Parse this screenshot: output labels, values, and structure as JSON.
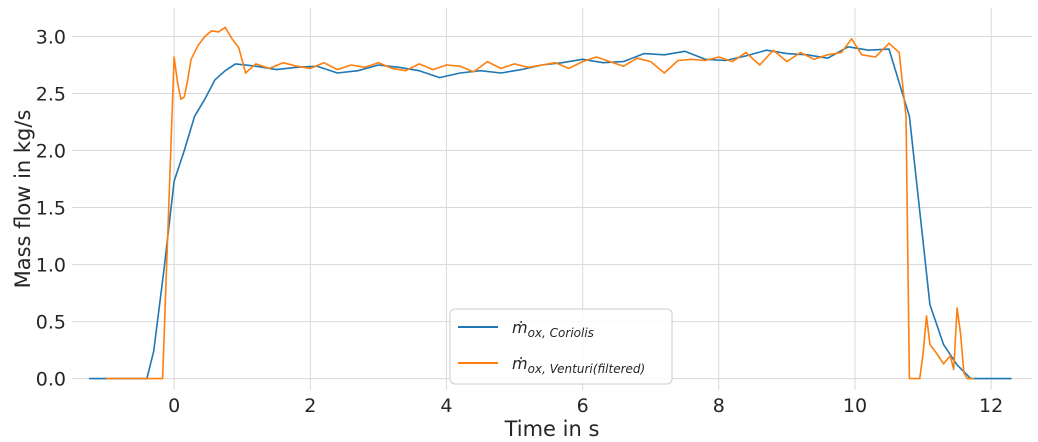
{
  "chart_data": {
    "type": "line",
    "title": "",
    "xlabel": "Time in s",
    "ylabel": "Mass flow in kg/s",
    "xlim": [
      -1.5,
      12.6
    ],
    "ylim": [
      -0.1,
      3.25
    ],
    "xticks": [
      0,
      2,
      4,
      6,
      8,
      10,
      12
    ],
    "xtick_labels": [
      "0",
      "2",
      "4",
      "6",
      "8",
      "10",
      "12"
    ],
    "yticks": [
      0.0,
      0.5,
      1.0,
      1.5,
      2.0,
      2.5,
      3.0
    ],
    "ytick_labels": [
      "0.0",
      "0.5",
      "1.0",
      "1.5",
      "2.0",
      "2.5",
      "3.0"
    ],
    "grid": true,
    "legend_position": "bottom-center",
    "series": [
      {
        "name_main": "ṁ",
        "name_sub": "ox, Coriolis",
        "color": "#1f77b4",
        "x": [
          -1.25,
          -0.4,
          -0.3,
          -0.15,
          0,
          0.15,
          0.3,
          0.45,
          0.6,
          0.75,
          0.9,
          1.2,
          1.5,
          1.8,
          2.1,
          2.4,
          2.7,
          3.0,
          3.3,
          3.6,
          3.9,
          4.2,
          4.5,
          4.8,
          5.1,
          5.4,
          5.7,
          6.0,
          6.3,
          6.6,
          6.9,
          7.2,
          7.5,
          7.8,
          8.1,
          8.4,
          8.7,
          9.0,
          9.3,
          9.6,
          9.9,
          10.2,
          10.5,
          10.8,
          11.0,
          11.1,
          11.3,
          11.5,
          11.7,
          12.3
        ],
        "y": [
          0.0,
          0.0,
          0.24,
          0.95,
          1.73,
          2.0,
          2.3,
          2.45,
          2.62,
          2.7,
          2.76,
          2.74,
          2.71,
          2.73,
          2.74,
          2.68,
          2.7,
          2.75,
          2.73,
          2.7,
          2.64,
          2.68,
          2.7,
          2.68,
          2.71,
          2.75,
          2.77,
          2.8,
          2.77,
          2.78,
          2.85,
          2.84,
          2.87,
          2.8,
          2.79,
          2.83,
          2.88,
          2.85,
          2.84,
          2.81,
          2.91,
          2.88,
          2.89,
          2.3,
          1.2,
          0.65,
          0.3,
          0.12,
          0.0,
          0.0
        ]
      },
      {
        "name_main": "ṁ",
        "name_sub": "ox, Venturi(filtered)",
        "color": "#ff7f0e",
        "x": [
          -1.0,
          -0.2,
          -0.17,
          0.0,
          0.05,
          0.1,
          0.15,
          0.2,
          0.25,
          0.35,
          0.45,
          0.55,
          0.65,
          0.75,
          0.85,
          0.95,
          1.05,
          1.2,
          1.4,
          1.6,
          1.8,
          2.0,
          2.2,
          2.4,
          2.6,
          2.8,
          3.0,
          3.2,
          3.4,
          3.6,
          3.8,
          4.0,
          4.2,
          4.4,
          4.6,
          4.8,
          5.0,
          5.2,
          5.4,
          5.6,
          5.8,
          6.0,
          6.2,
          6.4,
          6.6,
          6.8,
          7.0,
          7.2,
          7.4,
          7.6,
          7.8,
          8.0,
          8.2,
          8.4,
          8.6,
          8.8,
          9.0,
          9.2,
          9.4,
          9.6,
          9.8,
          9.95,
          10.1,
          10.3,
          10.5,
          10.65,
          10.75,
          10.8,
          10.9,
          10.95,
          11.0,
          11.05,
          11.1,
          11.2,
          11.3,
          11.4,
          11.45,
          11.5,
          11.55,
          11.6,
          11.65,
          11.75
        ],
        "y": [
          0.0,
          0.0,
          0.0,
          2.82,
          2.6,
          2.45,
          2.47,
          2.62,
          2.8,
          2.92,
          3.0,
          3.05,
          3.04,
          3.08,
          2.98,
          2.9,
          2.68,
          2.76,
          2.72,
          2.77,
          2.74,
          2.72,
          2.77,
          2.71,
          2.75,
          2.73,
          2.77,
          2.72,
          2.7,
          2.76,
          2.71,
          2.75,
          2.74,
          2.69,
          2.78,
          2.72,
          2.76,
          2.73,
          2.75,
          2.77,
          2.72,
          2.78,
          2.82,
          2.78,
          2.74,
          2.81,
          2.78,
          2.68,
          2.79,
          2.8,
          2.79,
          2.82,
          2.78,
          2.86,
          2.75,
          2.88,
          2.78,
          2.86,
          2.8,
          2.84,
          2.86,
          2.98,
          2.84,
          2.82,
          2.94,
          2.86,
          2.3,
          0.0,
          0.0,
          0.0,
          0.22,
          0.55,
          0.3,
          0.22,
          0.13,
          0.2,
          0.08,
          0.62,
          0.4,
          0.05,
          0.0,
          0.0
        ]
      }
    ]
  }
}
